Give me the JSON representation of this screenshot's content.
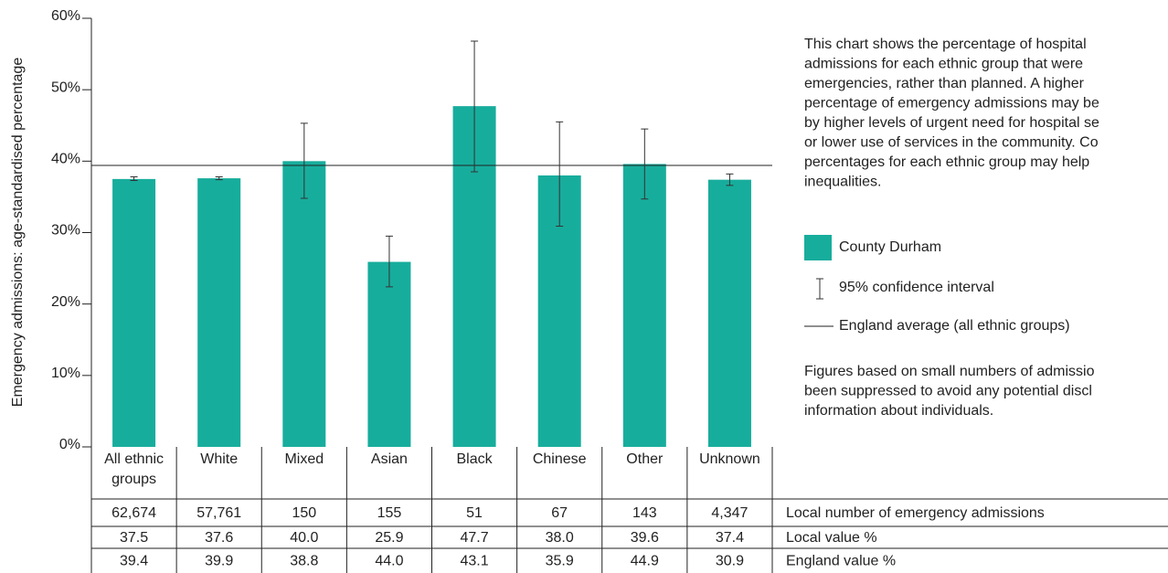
{
  "chart_data": {
    "type": "bar",
    "y_axis_label": "Emergency admissions: age-standardised percentage",
    "categories": [
      "All ethnic groups",
      "White",
      "Mixed",
      "Asian",
      "Black",
      "Chinese",
      "Other",
      "Unknown"
    ],
    "series": [
      {
        "name": "County Durham",
        "color": "#17ad9c",
        "values": [
          37.5,
          37.6,
          40.0,
          25.9,
          47.7,
          38.0,
          39.6,
          37.4
        ],
        "value_labels": [
          "37.5",
          "37.6",
          "40.0",
          "25.9",
          "47.7",
          "38.0",
          "39.6",
          "37.4"
        ],
        "ci_lower": [
          37.3,
          37.4,
          34.8,
          22.4,
          38.5,
          30.9,
          34.7,
          36.6
        ],
        "ci_upper": [
          37.8,
          37.8,
          45.3,
          29.5,
          56.8,
          45.5,
          44.5,
          38.2
        ]
      }
    ],
    "ci_legend": "95% confidence interval",
    "reference_legend": "England average (all ethnic groups)",
    "england_values": [
      39.4,
      39.9,
      38.8,
      44.0,
      43.1,
      35.9,
      44.9,
      30.9
    ],
    "england_value_labels": [
      "39.4",
      "39.9",
      "38.8",
      "44.0",
      "43.1",
      "35.9",
      "44.9",
      "30.9"
    ],
    "ylim": [
      0,
      60
    ],
    "yticks": [
      {
        "value": 0,
        "label": "0%"
      },
      {
        "value": 10,
        "label": "10%"
      },
      {
        "value": 20,
        "label": "20%"
      },
      {
        "value": 30,
        "label": "30%"
      },
      {
        "value": 40,
        "label": "40%"
      },
      {
        "value": 50,
        "label": "50%"
      },
      {
        "value": 60,
        "label": "60%"
      }
    ]
  },
  "table": {
    "counts": [
      "62,674",
      "57,761",
      "150",
      "155",
      "51",
      "67",
      "143",
      "4,347"
    ],
    "row_labels": [
      "Local number of emergency admissions",
      "Local value %",
      "England value %"
    ]
  },
  "description": [
    "This chart shows the percentage of hospital",
    "admissions for each ethnic group that were",
    "emergencies, rather than planned. A higher",
    "percentage of emergency admissions may be",
    "by higher levels of urgent need for hospital se",
    "or lower use of services in the community. Co",
    "percentages for each ethnic group may help",
    "inequalities."
  ],
  "footnote": [
    "Figures based on small numbers of admissio",
    "been suppressed to avoid any potential discl",
    "information about individuals."
  ]
}
